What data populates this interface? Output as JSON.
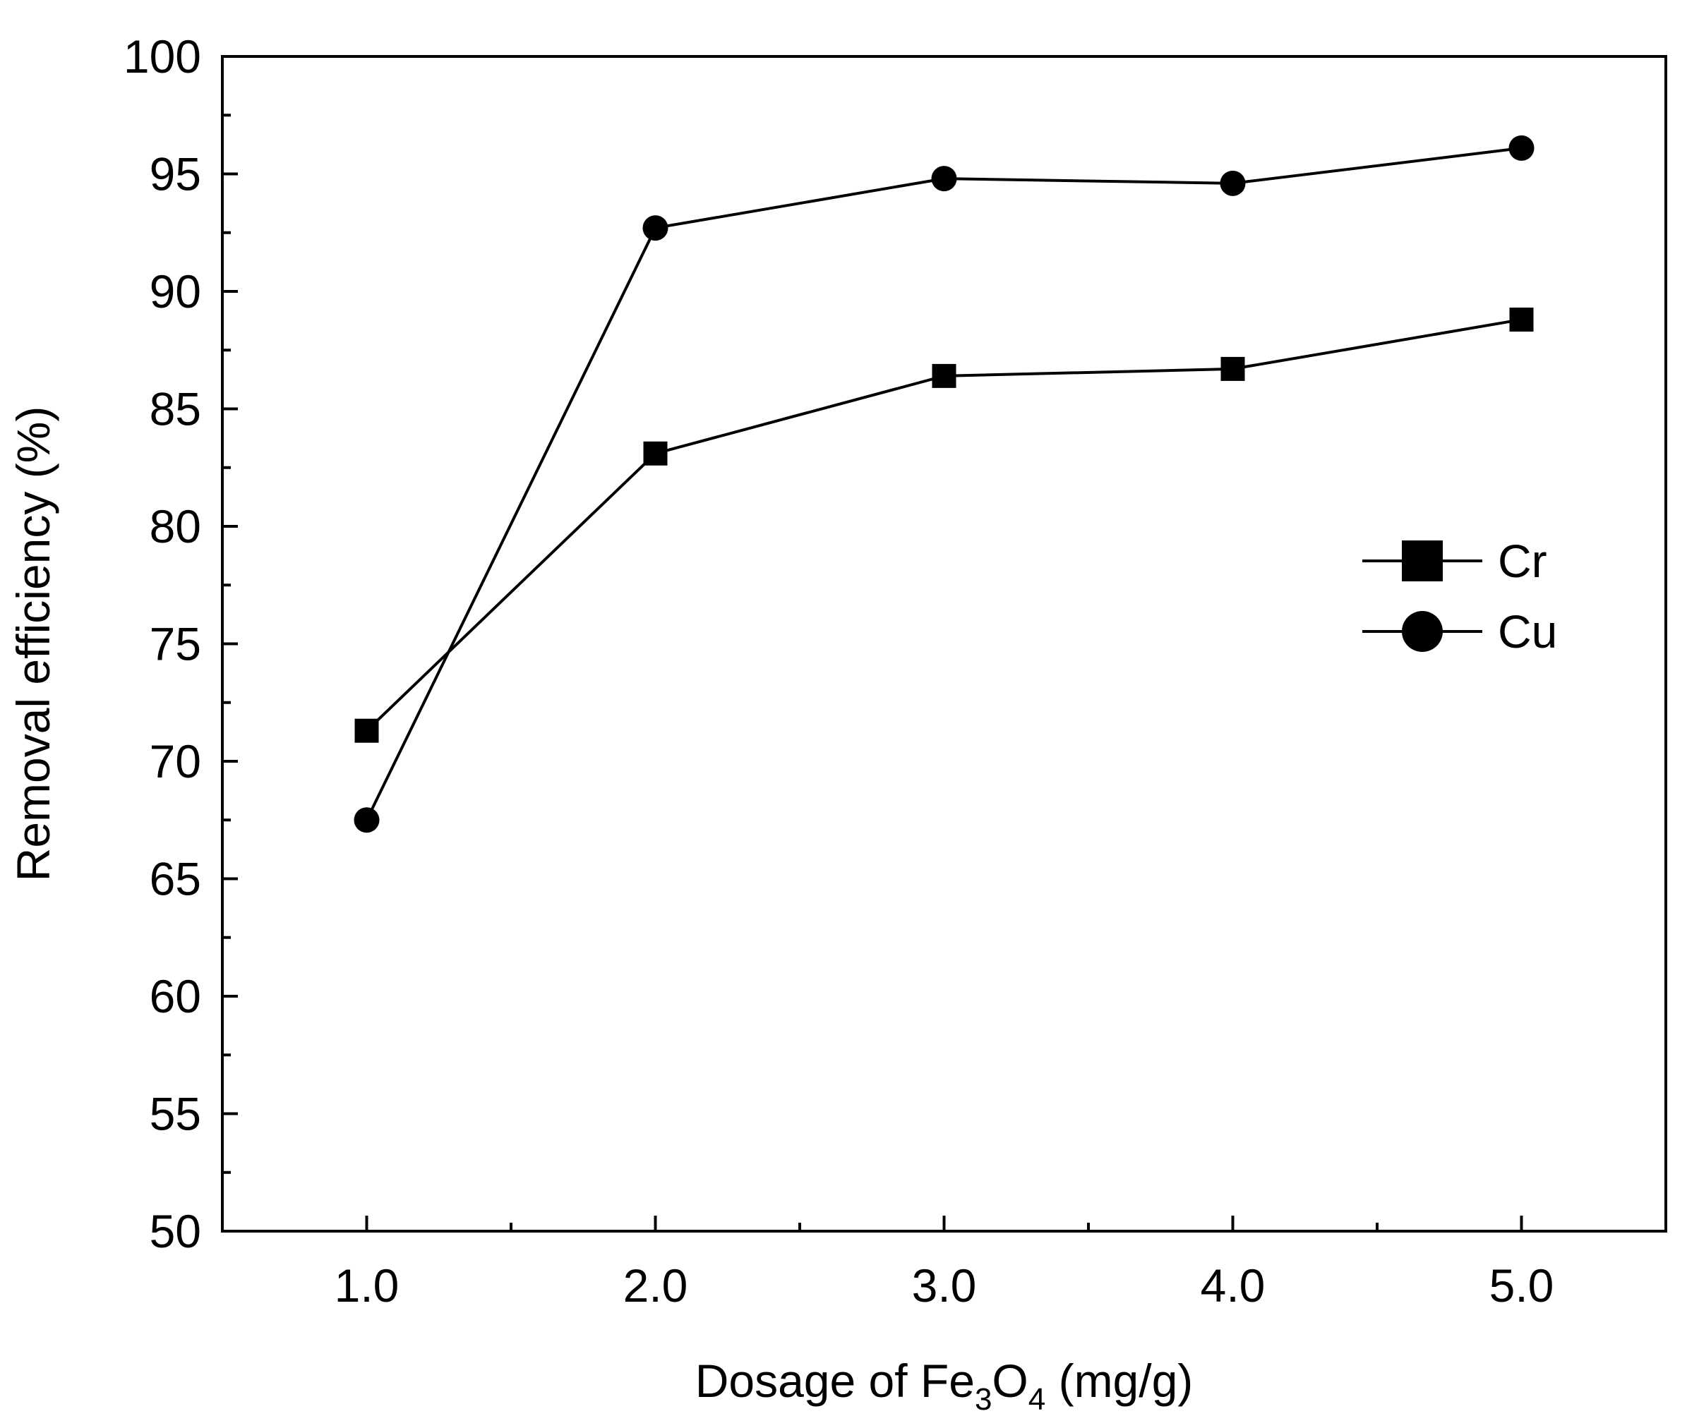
{
  "chart_data": {
    "type": "line",
    "title": "",
    "xlabel": {
      "prefix": "Dosage of Fe",
      "sub1": "3",
      "mid": "O",
      "sub2": "4",
      "suffix": " (mg/g)"
    },
    "ylabel": "Removal efficiency (%)",
    "xlim": [
      0.5,
      5.5
    ],
    "ylim": [
      50,
      100
    ],
    "x_ticks": [
      1.0,
      2.0,
      3.0,
      4.0,
      5.0
    ],
    "x_tick_labels": [
      "1.0",
      "2.0",
      "3.0",
      "4.0",
      "5.0"
    ],
    "x_minor_ticks": [
      1.5,
      2.5,
      3.5,
      4.5
    ],
    "y_ticks": [
      50,
      55,
      60,
      65,
      70,
      75,
      80,
      85,
      90,
      95,
      100
    ],
    "y_tick_labels": [
      "50",
      "55",
      "60",
      "65",
      "70",
      "75",
      "80",
      "85",
      "90",
      "95",
      "100"
    ],
    "y_minor_ticks": [
      52.5,
      57.5,
      62.5,
      67.5,
      72.5,
      77.5,
      82.5,
      87.5,
      92.5,
      97.5
    ],
    "grid": false,
    "legend_position": "right",
    "series": [
      {
        "name": "Cr",
        "marker": "square",
        "x": [
          1.0,
          2.0,
          3.0,
          4.0,
          5.0
        ],
        "values": [
          71.3,
          83.1,
          86.4,
          86.7,
          88.8
        ]
      },
      {
        "name": "Cu",
        "marker": "circle",
        "x": [
          1.0,
          2.0,
          3.0,
          4.0,
          5.0
        ],
        "values": [
          67.5,
          92.7,
          94.8,
          94.6,
          96.1
        ]
      }
    ],
    "colors": {
      "line": "#000000",
      "marker": "#000000",
      "background": "#ffffff"
    }
  }
}
